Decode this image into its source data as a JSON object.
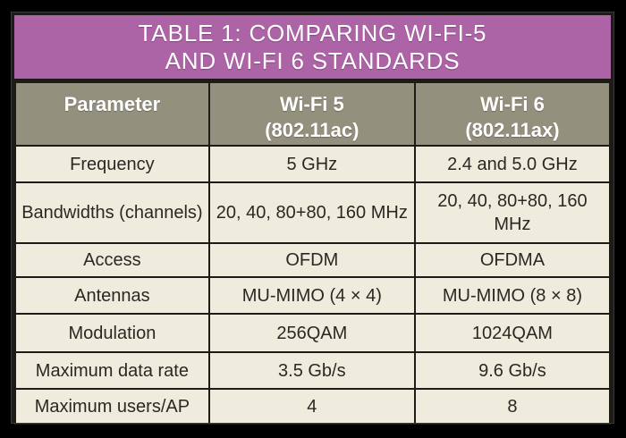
{
  "title": {
    "line1": "TABLE 1: COMPARING WI-FI-5",
    "line2": "AND WI-FI 6 STANDARDS"
  },
  "header": {
    "col1": "Parameter",
    "col2_line1": "Wi-Fi 5",
    "col2_line2": "(802.11ac)",
    "col3_line1": "Wi-Fi 6",
    "col3_line2": "(802.11ax)"
  },
  "chart_data": {
    "type": "table",
    "title": "TABLE 1: COMPARING WI-FI-5 AND WI-FI 6 STANDARDS",
    "columns": [
      "Parameter",
      "Wi-Fi 5 (802.11ac)",
      "Wi-Fi 6 (802.11ax)"
    ],
    "rows": [
      [
        "Frequency",
        "5 GHz",
        "2.4 and 5.0 GHz"
      ],
      [
        "Bandwidths (channels)",
        "20, 40, 80+80, 160 MHz",
        "20, 40, 80+80, 160 MHz"
      ],
      [
        "Access",
        "OFDM",
        "OFDMA"
      ],
      [
        "Antennas",
        "MU-MIMO (4 × 4)",
        "MU-MIMO (8 × 8)"
      ],
      [
        "Modulation",
        "256QAM",
        "1024QAM"
      ],
      [
        "Maximum data rate",
        "3.5 Gb/s",
        "9.6 Gb/s"
      ],
      [
        "Maximum users/AP",
        "4",
        "8"
      ]
    ]
  },
  "colors": {
    "frame": "#000000",
    "title_bg": "#AD64A6",
    "header_bg": "#94907E",
    "cell_bg": "#EFECDE",
    "border": "#1E1B17",
    "title_text": "#FFFFFF",
    "cell_text": "#2B2823"
  }
}
